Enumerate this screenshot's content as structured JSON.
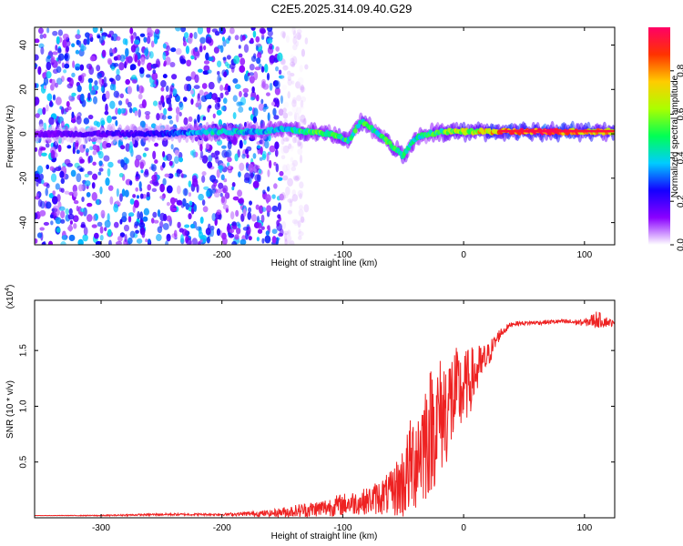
{
  "figure_title": "C2E5.2025.314.09.40.G29",
  "chart_data": [
    {
      "type": "heatmap",
      "title": "C2E5.2025.314.09.40.G29",
      "xlabel": "Height of straight line (km)",
      "ylabel": "Frequency (Hz)",
      "xlim": [
        -355,
        125
      ],
      "ylim": [
        -50,
        48
      ],
      "xticks": [
        -300,
        -200,
        -100,
        0,
        100
      ],
      "yticks": [
        -40,
        -20,
        0,
        20,
        40
      ],
      "colorbar": {
        "label": "Normalized spectral amplitude",
        "range": [
          0.0,
          1.0
        ],
        "ticks": [
          "0.0",
          "0.2",
          "0.4",
          "0.6",
          "0.8"
        ],
        "colors": [
          "#ffffff",
          "#8a00ff",
          "#1400ff",
          "#00ccff",
          "#00ff55",
          "#aaff00",
          "#ffcc00",
          "#ff3300",
          "#ff0066"
        ]
      },
      "noise_region_km": [
        -355,
        -150
      ],
      "ridge": [
        {
          "x": -355,
          "y": 0,
          "amp": 0.15
        },
        {
          "x": -300,
          "y": 0,
          "amp": 0.2
        },
        {
          "x": -250,
          "y": 0,
          "amp": 0.25
        },
        {
          "x": -220,
          "y": 1,
          "amp": 0.4
        },
        {
          "x": -200,
          "y": 1,
          "amp": 0.45
        },
        {
          "x": -170,
          "y": 1,
          "amp": 0.4
        },
        {
          "x": -150,
          "y": 2,
          "amp": 0.45
        },
        {
          "x": -130,
          "y": 1,
          "amp": 0.55
        },
        {
          "x": -110,
          "y": 0,
          "amp": 0.55
        },
        {
          "x": -95,
          "y": -3,
          "amp": 0.5
        },
        {
          "x": -85,
          "y": 6,
          "amp": 0.55
        },
        {
          "x": -70,
          "y": 0,
          "amp": 0.5
        },
        {
          "x": -60,
          "y": -5,
          "amp": 0.55
        },
        {
          "x": -50,
          "y": -10,
          "amp": 0.5
        },
        {
          "x": -40,
          "y": -2,
          "amp": 0.45
        },
        {
          "x": -30,
          "y": 0,
          "amp": 0.5
        },
        {
          "x": -15,
          "y": 1,
          "amp": 0.6
        },
        {
          "x": 0,
          "y": 1,
          "amp": 0.7
        },
        {
          "x": 20,
          "y": 1,
          "amp": 0.8
        },
        {
          "x": 40,
          "y": 1,
          "amp": 0.9
        },
        {
          "x": 60,
          "y": 1,
          "amp": 1.0
        },
        {
          "x": 80,
          "y": 1,
          "amp": 0.95
        },
        {
          "x": 100,
          "y": 1,
          "amp": 0.85
        },
        {
          "x": 125,
          "y": 1,
          "amp": 0.8
        }
      ]
    },
    {
      "type": "line",
      "xlabel": "Height of straight line (km)",
      "ylabel": "SNR (10 * v/v)",
      "y_multiplier": "(x10",
      "y_multiplier_exp": "4",
      "xlim": [
        -355,
        125
      ],
      "ylim": [
        0.0,
        1.95
      ],
      "xticks": [
        -300,
        -200,
        -100,
        0,
        100
      ],
      "yticks": [
        0.5,
        1.0,
        1.5
      ],
      "ytick_labels": [
        "0.5",
        "1.0",
        "1.5"
      ],
      "series": [
        {
          "name": "SNR",
          "color": "#ee2222",
          "x": [
            -355,
            -300,
            -250,
            -200,
            -160,
            -140,
            -120,
            -100,
            -80,
            -60,
            -50,
            -40,
            -30,
            -20,
            -10,
            0,
            10,
            20,
            30,
            40,
            60,
            80,
            100,
            110,
            125
          ],
          "y": [
            0.02,
            0.02,
            0.03,
            0.03,
            0.04,
            0.06,
            0.08,
            0.12,
            0.15,
            0.22,
            0.32,
            0.55,
            0.75,
            0.9,
            1.05,
            1.15,
            1.3,
            1.45,
            1.65,
            1.74,
            1.75,
            1.76,
            1.75,
            1.78,
            1.74
          ],
          "noise": [
            0.0,
            0.005,
            0.01,
            0.01,
            0.03,
            0.06,
            0.08,
            0.1,
            0.12,
            0.2,
            0.35,
            0.5,
            0.6,
            0.55,
            0.5,
            0.35,
            0.25,
            0.12,
            0.05,
            0.02,
            0.02,
            0.02,
            0.03,
            0.08,
            0.02
          ]
        }
      ]
    }
  ]
}
